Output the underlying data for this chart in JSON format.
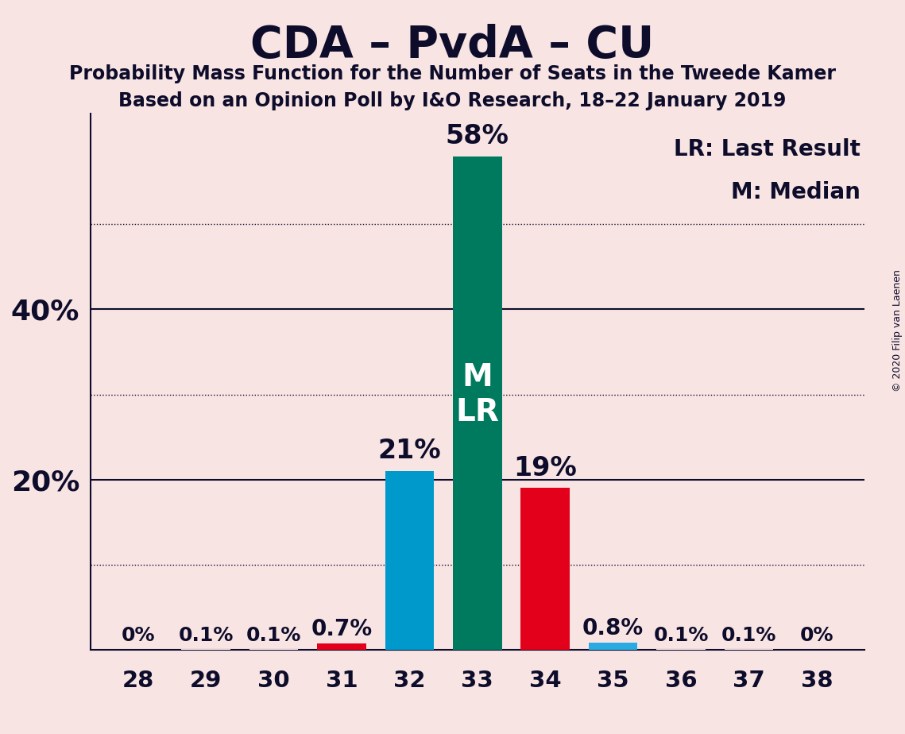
{
  "title": "CDA – PvdA – CU",
  "subtitle1": "Probability Mass Function for the Number of Seats in the Tweede Kamer",
  "subtitle2": "Based on an Opinion Poll by I&O Research, 18–22 January 2019",
  "copyright": "© 2020 Filip van Laenen",
  "legend_lr": "LR: Last Result",
  "legend_m": "M: Median",
  "background_color": "#f9e4e4",
  "seats": [
    28,
    29,
    30,
    31,
    32,
    33,
    34,
    35,
    36,
    37,
    38
  ],
  "probabilities": [
    0.0,
    0.1,
    0.1,
    0.7,
    21.0,
    58.0,
    19.0,
    0.8,
    0.1,
    0.1,
    0.0
  ],
  "labels": [
    "0%",
    "0.1%",
    "0.1%",
    "0.7%",
    "21%",
    "58%",
    "19%",
    "0.8%",
    "0.1%",
    "0.1%",
    "0%"
  ],
  "bar_colors": [
    "#f9e4e4",
    "#f9e4e4",
    "#f9e4e4",
    "#e3001b",
    "#0099cc",
    "#007a5e",
    "#e3001b",
    "#29abe2",
    "#f9e4e4",
    "#f9e4e4",
    "#f9e4e4"
  ],
  "median_seat": 33,
  "lr_seat": 33,
  "label_color": "#0d0d2b",
  "title_color": "#0d0d2b",
  "axis_color": "#0d0d2b",
  "solid_grid_levels": [
    20,
    40
  ],
  "dotted_grid_levels": [
    10,
    30,
    50
  ],
  "ylim": [
    0,
    63
  ],
  "solid_ytick_labels": {
    "20": "20%",
    "40": "40%"
  },
  "bar_width": 0.72
}
